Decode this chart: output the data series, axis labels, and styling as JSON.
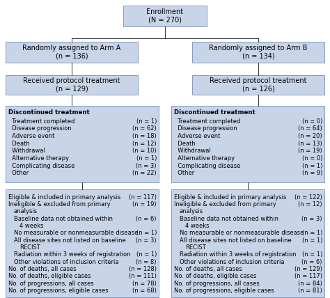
{
  "bg_color": "#ffffff",
  "box_fill": "#c8d4e8",
  "box_edge": "#8899bb",
  "line_color": "#333333",
  "text_color": "#000000",
  "fs_title": 7.0,
  "fs_body": 6.0,
  "fs_bold": 6.2,
  "enrollment_text": "Enrollment\n(N = 270)",
  "arm_a_text": "Randomly assigned to Arm A\n(n = 136)",
  "arm_b_text": "Randomly assigned to Arm B\n(n = 134)",
  "proto_a_text": "Received protocol treatment\n(n = 129)",
  "proto_b_text": "Received protocol treatment\n(n = 126)",
  "discont_title": "Discontinued treatment",
  "discont_a_rows": [
    [
      "  Treatment completed",
      "(n = 1)"
    ],
    [
      "  Disease progression",
      "(n = 62)"
    ],
    [
      "  Adverse event",
      "(n = 18)"
    ],
    [
      "  Death",
      "(n = 12)"
    ],
    [
      "  Withdrawal",
      "(n = 10)"
    ],
    [
      "  Alternative therapy",
      "(n = 1)"
    ],
    [
      "  Complicating disease",
      "(n = 3)"
    ],
    [
      "  Other",
      "(n = 22)"
    ]
  ],
  "discont_b_rows": [
    [
      "  Treatment completed",
      "(n = 0)"
    ],
    [
      "  Disease progression",
      "(n = 64)"
    ],
    [
      "  Adverse event",
      "(n = 20)"
    ],
    [
      "  Death",
      "(n = 13)"
    ],
    [
      "  Withdrawal",
      "(n = 19)"
    ],
    [
      "  Alternative therapy",
      "(n = 0)"
    ],
    [
      "  Complicating disease",
      "(n = 1)"
    ],
    [
      "  Other",
      "(n = 9)"
    ]
  ],
  "analysis_a_lines": [
    [
      "Eligible & included in primary analysis",
      "(n = 117)",
      0
    ],
    [
      "Ineligible & excluded from primary",
      "(n = 19)",
      0
    ],
    [
      "  analysis",
      "",
      1
    ],
    [
      "  Baseline data not obtained within",
      "(n = 6)",
      1
    ],
    [
      "    4 weeks",
      "",
      2
    ],
    [
      "  No measurable or nonmeasurable disease",
      "(n = 1)",
      1
    ],
    [
      "  All disease sites not listed on baseline",
      "(n = 3)",
      1
    ],
    [
      "    RECIST",
      "",
      2
    ],
    [
      "  Radiation within 3 weeks of registration",
      "(n = 1)",
      1
    ],
    [
      "  Other violations of inclusion criteria",
      "(n = 8)",
      1
    ],
    [
      "No. of deaths, all cases",
      "(n = 128)",
      0
    ],
    [
      "No. of deaths, eligible cases",
      "(n = 111)",
      0
    ],
    [
      "No. of progressions, all cases",
      "(n = 78)",
      0
    ],
    [
      "No. of progressions, eligible cases",
      "(n = 68)",
      0
    ]
  ],
  "analysis_b_lines": [
    [
      "Eligible & included in primary analysis",
      "(n = 122)",
      0
    ],
    [
      "Ineligible & excluded from primary",
      "(n = 12)",
      0
    ],
    [
      "  analysis",
      "",
      1
    ],
    [
      "  Baseline data not obtained within",
      "(n = 3)",
      1
    ],
    [
      "    4 weeks",
      "",
      2
    ],
    [
      "  No measurable or nonmeasurable disease",
      "(n = 1)",
      1
    ],
    [
      "  All disease sites not listed on baseline",
      "(n = 1)",
      1
    ],
    [
      "    RECIST",
      "",
      2
    ],
    [
      "  Radiation within 3 weeks of registration",
      "(n = 1)",
      1
    ],
    [
      "  Other violations of inclusion criteria",
      "(n = 6)",
      1
    ],
    [
      "No. of deaths, all cases",
      "(n = 129)",
      0
    ],
    [
      "No. of deaths, eligible cases",
      "(n = 117)",
      0
    ],
    [
      "No. of progressions, all cases",
      "(n = 84)",
      0
    ],
    [
      "No. of progressions, eligible cases",
      "(n = 81)",
      0
    ]
  ]
}
